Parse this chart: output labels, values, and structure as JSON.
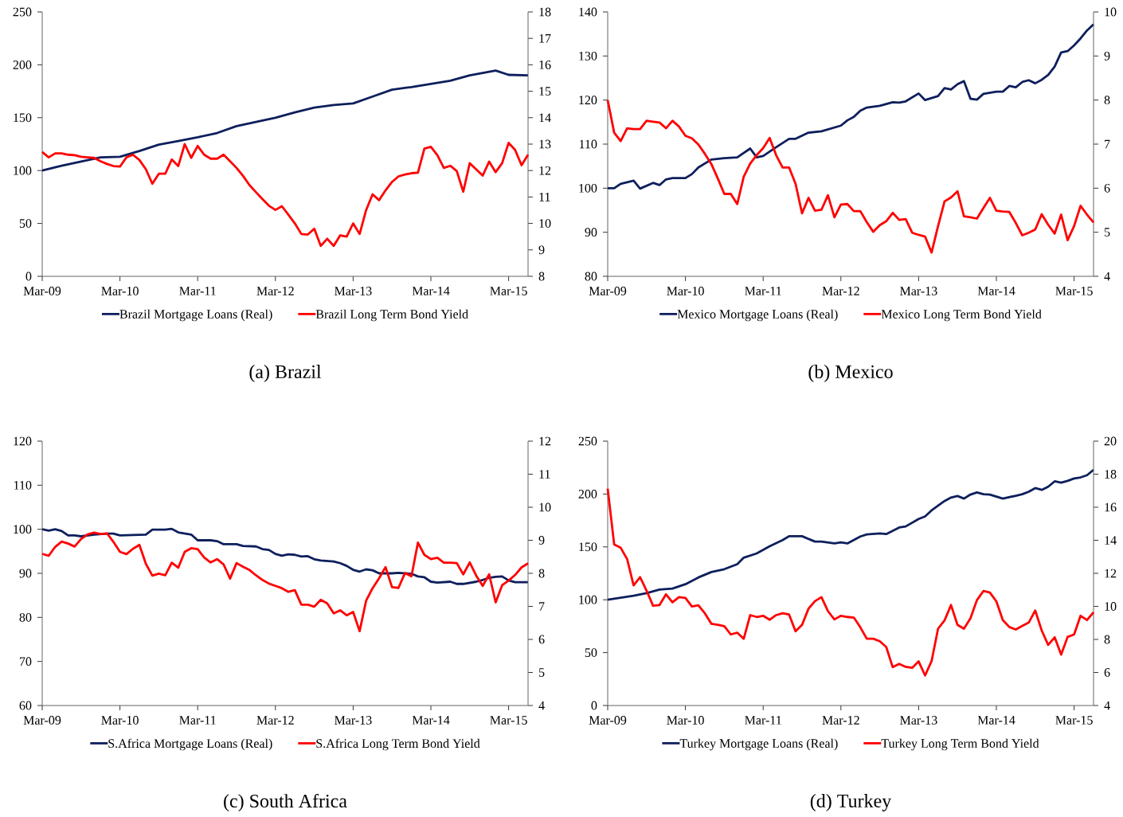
{
  "chart_data": [
    {
      "type": "line",
      "title": "(a) Brazil",
      "legend": "bottom",
      "xlim": [
        "2009-03",
        "2015-06"
      ],
      "ylim": [
        0,
        250
      ],
      "yticks": [
        0,
        50,
        100,
        150,
        200,
        250
      ],
      "y2lim": [
        8,
        18
      ],
      "y2ticks": [
        8,
        9,
        10,
        11,
        12,
        13,
        14,
        15,
        16,
        17,
        18
      ],
      "xticks": [
        {
          "value": "2009-03",
          "label": "Mar-09"
        },
        {
          "value": "2010-03",
          "label": "Mar-10"
        },
        {
          "value": "2011-03",
          "label": "Mar-11"
        },
        {
          "value": "2012-03",
          "label": "Mar-12"
        },
        {
          "value": "2013-03",
          "label": "Mar-13"
        },
        {
          "value": "2014-03",
          "label": "Mar-14"
        },
        {
          "value": "2015-03",
          "label": "Mar-15"
        }
      ],
      "x": [
        "2009-03",
        "2009-04",
        "2009-05",
        "2009-06",
        "2009-07",
        "2009-08",
        "2009-09",
        "2009-10",
        "2009-11",
        "2009-12",
        "2010-01",
        "2010-02",
        "2010-03",
        "2010-04",
        "2010-05",
        "2010-06",
        "2010-07",
        "2010-08",
        "2010-09",
        "2010-10",
        "2010-11",
        "2010-12",
        "2011-01",
        "2011-02",
        "2011-03",
        "2011-04",
        "2011-05",
        "2011-06",
        "2011-07",
        "2011-08",
        "2011-09",
        "2011-10",
        "2011-11",
        "2011-12",
        "2012-01",
        "2012-02",
        "2012-03",
        "2012-04",
        "2012-05",
        "2012-06",
        "2012-07",
        "2012-08",
        "2012-09",
        "2012-10",
        "2012-11",
        "2012-12",
        "2013-01",
        "2013-02",
        "2013-03",
        "2013-04",
        "2013-05",
        "2013-06",
        "2013-07",
        "2013-08",
        "2013-09",
        "2013-10",
        "2013-11",
        "2013-12",
        "2014-01",
        "2014-02",
        "2014-03",
        "2014-04",
        "2014-05",
        "2014-06",
        "2014-07",
        "2014-08",
        "2014-09",
        "2014-10",
        "2014-11",
        "2014-12",
        "2015-01",
        "2015-02",
        "2015-03",
        "2015-04",
        "2015-05",
        "2015-06"
      ],
      "series": [
        {
          "name": "Brazil Mortgage Loans (Real)",
          "color": "#0d1f5c",
          "x": [
            "2009-03",
            "2009-06",
            "2009-09",
            "2009-12",
            "2010-03",
            "2010-06",
            "2010-09",
            "2010-12",
            "2011-03",
            "2011-06",
            "2011-09",
            "2011-12",
            "2012-03",
            "2012-06",
            "2012-09",
            "2012-12",
            "2013-03",
            "2013-06",
            "2013-09",
            "2013-12",
            "2014-03",
            "2014-06",
            "2014-09",
            "2014-12",
            "2015-01",
            "2015-03",
            "2015-06"
          ],
          "values": [
            100,
            104.5,
            108.5,
            112.5,
            113,
            118.5,
            124.5,
            128,
            131.5,
            135.5,
            142,
            146,
            150,
            155,
            159.5,
            162,
            163.5,
            170,
            176.5,
            179,
            182,
            185,
            190,
            193.5,
            194.5,
            190.5,
            190
          ]
        },
        {
          "name": "Brazil Long Term Bond Yield",
          "color": "#ff0000",
          "axis": "y2",
          "values": [
            12.7,
            12.5,
            12.65,
            12.65,
            12.6,
            12.58,
            12.52,
            12.5,
            12.48,
            12.35,
            12.25,
            12.17,
            12.15,
            12.5,
            12.6,
            12.4,
            12.05,
            11.5,
            11.88,
            11.88,
            12.42,
            12.17,
            13.0,
            12.48,
            12.93,
            12.6,
            12.45,
            12.45,
            12.6,
            12.35,
            12.1,
            11.8,
            11.45,
            11.18,
            10.92,
            10.67,
            10.51,
            10.65,
            10.33,
            10.0,
            9.6,
            9.58,
            9.8,
            9.15,
            9.42,
            9.15,
            9.55,
            9.5,
            10.0,
            9.6,
            10.5,
            11.1,
            10.88,
            11.25,
            11.57,
            11.78,
            11.85,
            11.9,
            11.92,
            12.83,
            12.9,
            12.58,
            12.1,
            12.18,
            11.98,
            11.2,
            12.28,
            12.04,
            11.81,
            12.34,
            11.94,
            12.28,
            13.05,
            12.78,
            12.2,
            12.6
          ]
        }
      ]
    },
    {
      "type": "line",
      "title": "(b) Mexico",
      "legend": "bottom",
      "xlim": [
        "2009-03",
        "2015-06"
      ],
      "ylim": [
        80,
        140
      ],
      "yticks": [
        80,
        90,
        100,
        110,
        120,
        130,
        140
      ],
      "y2lim": [
        4,
        10
      ],
      "y2ticks": [
        4,
        5,
        6,
        7,
        8,
        9,
        10
      ],
      "xticks": [
        {
          "value": "2009-03",
          "label": "Mar-09"
        },
        {
          "value": "2010-03",
          "label": "Mar-10"
        },
        {
          "value": "2011-03",
          "label": "Mar-11"
        },
        {
          "value": "2012-03",
          "label": "Mar-12"
        },
        {
          "value": "2013-03",
          "label": "Mar-13"
        },
        {
          "value": "2014-03",
          "label": "Mar-14"
        },
        {
          "value": "2015-03",
          "label": "Mar-15"
        }
      ],
      "x": [
        "2009-03",
        "2009-04",
        "2009-05",
        "2009-06",
        "2009-07",
        "2009-08",
        "2009-09",
        "2009-10",
        "2009-11",
        "2009-12",
        "2010-01",
        "2010-02",
        "2010-03",
        "2010-04",
        "2010-05",
        "2010-06",
        "2010-07",
        "2010-08",
        "2010-09",
        "2010-10",
        "2010-11",
        "2010-12",
        "2011-01",
        "2011-02",
        "2011-03",
        "2011-04",
        "2011-05",
        "2011-06",
        "2011-07",
        "2011-08",
        "2011-09",
        "2011-10",
        "2011-11",
        "2011-12",
        "2012-01",
        "2012-02",
        "2012-03",
        "2012-04",
        "2012-05",
        "2012-06",
        "2012-07",
        "2012-08",
        "2012-09",
        "2012-10",
        "2012-11",
        "2012-12",
        "2013-01",
        "2013-02",
        "2013-03",
        "2013-04",
        "2013-05",
        "2013-06",
        "2013-07",
        "2013-08",
        "2013-09",
        "2013-10",
        "2013-11",
        "2013-12",
        "2014-01",
        "2014-02",
        "2014-03",
        "2014-04",
        "2014-05",
        "2014-06",
        "2014-07",
        "2014-08",
        "2014-09",
        "2014-10",
        "2014-11",
        "2014-12",
        "2015-01",
        "2015-02",
        "2015-03",
        "2015-04",
        "2015-05",
        "2015-06"
      ],
      "series": [
        {
          "name": "Mexico Mortgage Loans (Real)",
          "color": "#0d1f5c",
          "x": [
            "2009-03",
            "2009-04",
            "2009-05",
            "2009-07",
            "2009-08",
            "2009-10",
            "2009-11",
            "2009-12",
            "2010-01",
            "2010-03",
            "2010-04",
            "2010-05",
            "2010-07",
            "2010-09",
            "2010-11",
            "2011-01",
            "2011-02",
            "2011-03",
            "2011-05",
            "2011-07",
            "2011-08",
            "2011-10",
            "2011-12",
            "2012-03",
            "2012-04",
            "2012-05",
            "2012-06",
            "2012-07",
            "2012-09",
            "2012-11",
            "2012-12",
            "2013-01",
            "2013-03",
            "2013-04",
            "2013-06",
            "2013-07",
            "2013-08",
            "2013-09",
            "2013-10",
            "2013-11",
            "2013-12",
            "2014-01",
            "2014-03",
            "2014-04",
            "2014-05",
            "2014-06",
            "2014-07",
            "2014-08",
            "2014-09",
            "2014-10",
            "2014-11",
            "2014-12",
            "2015-01",
            "2015-02",
            "2015-03",
            "2015-04",
            "2015-05",
            "2015-06"
          ],
          "values": [
            100,
            100,
            101,
            101.7,
            99.9,
            101.2,
            100.7,
            102,
            102.3,
            102.3,
            103.2,
            104.7,
            106.5,
            106.8,
            107,
            109,
            107,
            107.3,
            109.3,
            111.2,
            111.2,
            112.6,
            112.9,
            114.2,
            115.4,
            116.2,
            117.6,
            118.3,
            118.7,
            119.5,
            119.4,
            119.7,
            121.5,
            120,
            120.9,
            122.7,
            122.4,
            123.6,
            124.3,
            120.3,
            120.1,
            121.4,
            121.9,
            121.9,
            123.2,
            122.9,
            124.1,
            124.5,
            123.8,
            124.6,
            125.7,
            127.6,
            130.8,
            131.1,
            132.4,
            134,
            135.8,
            137.2
          ]
        },
        {
          "name": "Mexico Long Term Bond Yield",
          "color": "#ff0000",
          "axis": "y2",
          "values": [
            8.0,
            7.26,
            7.07,
            7.36,
            7.34,
            7.34,
            7.53,
            7.51,
            7.49,
            7.36,
            7.53,
            7.4,
            7.19,
            7.13,
            6.99,
            6.78,
            6.55,
            6.22,
            5.87,
            5.87,
            5.64,
            6.26,
            6.56,
            6.75,
            6.91,
            7.14,
            6.75,
            6.47,
            6.47,
            6.1,
            5.43,
            5.78,
            5.49,
            5.51,
            5.84,
            5.34,
            5.63,
            5.64,
            5.48,
            5.48,
            5.23,
            5.01,
            5.16,
            5.25,
            5.44,
            5.28,
            5.3,
            4.99,
            4.94,
            4.9,
            4.54,
            5.14,
            5.7,
            5.79,
            5.93,
            5.36,
            5.34,
            5.31,
            5.55,
            5.78,
            5.49,
            5.47,
            5.46,
            5.21,
            4.93,
            4.99,
            5.06,
            5.41,
            5.17,
            4.97,
            5.4,
            4.82,
            5.14,
            5.6,
            5.4,
            5.22
          ]
        }
      ]
    },
    {
      "type": "line",
      "title": "(c) South Africa",
      "legend": "bottom",
      "xlim": [
        "2009-03",
        "2015-06"
      ],
      "ylim": [
        60,
        120
      ],
      "yticks": [
        60,
        70,
        80,
        90,
        100,
        110,
        120
      ],
      "y2lim": [
        4,
        12
      ],
      "y2ticks": [
        4,
        5,
        6,
        7,
        8,
        9,
        10,
        11,
        12
      ],
      "xticks": [
        {
          "value": "2009-03",
          "label": "Mar-09"
        },
        {
          "value": "2010-03",
          "label": "Mar-10"
        },
        {
          "value": "2011-03",
          "label": "Mar-11"
        },
        {
          "value": "2012-03",
          "label": "Mar-12"
        },
        {
          "value": "2013-03",
          "label": "Mar-13"
        },
        {
          "value": "2014-03",
          "label": "Mar-14"
        },
        {
          "value": "2015-03",
          "label": "Mar-15"
        }
      ],
      "x": [
        "2009-03",
        "2009-04",
        "2009-05",
        "2009-06",
        "2009-07",
        "2009-08",
        "2009-09",
        "2009-10",
        "2009-11",
        "2009-12",
        "2010-01",
        "2010-02",
        "2010-03",
        "2010-04",
        "2010-05",
        "2010-06",
        "2010-07",
        "2010-08",
        "2010-09",
        "2010-10",
        "2010-11",
        "2010-12",
        "2011-01",
        "2011-02",
        "2011-03",
        "2011-04",
        "2011-05",
        "2011-06",
        "2011-07",
        "2011-08",
        "2011-09",
        "2011-10",
        "2011-11",
        "2011-12",
        "2012-01",
        "2012-02",
        "2012-03",
        "2012-04",
        "2012-05",
        "2012-06",
        "2012-07",
        "2012-08",
        "2012-09",
        "2012-10",
        "2012-11",
        "2012-12",
        "2013-01",
        "2013-02",
        "2013-03",
        "2013-04",
        "2013-05",
        "2013-06",
        "2013-07",
        "2013-08",
        "2013-09",
        "2013-10",
        "2013-11",
        "2013-12",
        "2014-01",
        "2014-02",
        "2014-03",
        "2014-04",
        "2014-05",
        "2014-06",
        "2014-07",
        "2014-08",
        "2014-09",
        "2014-10",
        "2014-11",
        "2014-12",
        "2015-01",
        "2015-02",
        "2015-03",
        "2015-04",
        "2015-05",
        "2015-06"
      ],
      "series": [
        {
          "name": "S.Africa Mortgage Loans (Real)",
          "color": "#0d1f5c",
          "x": [
            "2009-03",
            "2009-04",
            "2009-05",
            "2009-06",
            "2009-07",
            "2009-08",
            "2009-09",
            "2009-11",
            "2010-01",
            "2010-02",
            "2010-03",
            "2010-05",
            "2010-07",
            "2010-08",
            "2010-10",
            "2010-11",
            "2010-12",
            "2011-02",
            "2011-03",
            "2011-05",
            "2011-06",
            "2011-07",
            "2011-09",
            "2011-10",
            "2011-12",
            "2012-01",
            "2012-02",
            "2012-03",
            "2012-04",
            "2012-05",
            "2012-06",
            "2012-07",
            "2012-08",
            "2012-09",
            "2012-10",
            "2012-12",
            "2013-01",
            "2013-02",
            "2013-03",
            "2013-04",
            "2013-05",
            "2013-06",
            "2013-07",
            "2013-09",
            "2013-10",
            "2013-12",
            "2014-01",
            "2014-02",
            "2014-03",
            "2014-04",
            "2014-06",
            "2014-07",
            "2014-08",
            "2014-10",
            "2014-11",
            "2014-12",
            "2015-01",
            "2015-02",
            "2015-03",
            "2015-04",
            "2015-06"
          ],
          "values": [
            100,
            99.7,
            100,
            99.6,
            98.6,
            98.6,
            98.4,
            98.8,
            99,
            99,
            98.6,
            98.7,
            98.8,
            99.9,
            99.9,
            100.1,
            99.3,
            98.8,
            97.5,
            97.5,
            97.3,
            96.6,
            96.6,
            96.2,
            96.1,
            95.5,
            95.3,
            94.4,
            94,
            94.3,
            94.2,
            93.8,
            93.9,
            93.2,
            92.9,
            92.7,
            92.3,
            91.7,
            90.8,
            90.4,
            90.9,
            90.7,
            90,
            90,
            90.1,
            89.9,
            89.3,
            89.1,
            88.1,
            87.9,
            88.1,
            87.6,
            87.6,
            88.1,
            88.5,
            89,
            89.2,
            89.3,
            88.4,
            88,
            88
          ]
        },
        {
          "name": "S.Africa Long Term Bond Yield",
          "color": "#ff0000",
          "axis": "y2",
          "values": [
            8.59,
            8.53,
            8.8,
            8.96,
            8.9,
            8.81,
            9.04,
            9.18,
            9.23,
            9.19,
            9.21,
            8.95,
            8.65,
            8.58,
            8.74,
            8.86,
            8.29,
            7.93,
            7.99,
            7.94,
            8.32,
            8.17,
            8.65,
            8.76,
            8.73,
            8.48,
            8.33,
            8.43,
            8.27,
            7.84,
            8.31,
            8.2,
            8.1,
            7.94,
            7.8,
            7.69,
            7.62,
            7.55,
            7.44,
            7.49,
            7.05,
            7.05,
            6.99,
            7.2,
            7.09,
            6.79,
            6.88,
            6.73,
            6.83,
            6.25,
            7.17,
            7.55,
            7.85,
            8.19,
            7.58,
            7.56,
            8.01,
            7.91,
            8.93,
            8.56,
            8.43,
            8.47,
            8.32,
            8.32,
            8.31,
            7.97,
            8.33,
            7.93,
            7.62,
            7.97,
            7.12,
            7.64,
            7.78,
            7.95,
            8.18,
            8.3
          ]
        }
      ]
    },
    {
      "type": "line",
      "title": "(d) Turkey",
      "legend": "bottom",
      "xlim": [
        "2009-03",
        "2015-06"
      ],
      "ylim": [
        0,
        250
      ],
      "yticks": [
        0,
        50,
        100,
        150,
        200,
        250
      ],
      "y2lim": [
        4,
        20
      ],
      "y2ticks": [
        4,
        6,
        8,
        10,
        12,
        14,
        16,
        18,
        20
      ],
      "xticks": [
        {
          "value": "2009-03",
          "label": "Mar-09"
        },
        {
          "value": "2010-03",
          "label": "Mar-10"
        },
        {
          "value": "2011-03",
          "label": "Mar-11"
        },
        {
          "value": "2012-03",
          "label": "Mar-12"
        },
        {
          "value": "2013-03",
          "label": "Mar-13"
        },
        {
          "value": "2014-03",
          "label": "Mar-14"
        },
        {
          "value": "2015-03",
          "label": "Mar-15"
        }
      ],
      "x": [
        "2009-03",
        "2009-04",
        "2009-05",
        "2009-06",
        "2009-07",
        "2009-08",
        "2009-09",
        "2009-10",
        "2009-11",
        "2009-12",
        "2010-01",
        "2010-02",
        "2010-03",
        "2010-04",
        "2010-05",
        "2010-06",
        "2010-07",
        "2010-08",
        "2010-09",
        "2010-10",
        "2010-11",
        "2010-12",
        "2011-01",
        "2011-02",
        "2011-03",
        "2011-04",
        "2011-05",
        "2011-06",
        "2011-07",
        "2011-08",
        "2011-09",
        "2011-10",
        "2011-11",
        "2011-12",
        "2012-01",
        "2012-02",
        "2012-03",
        "2012-04",
        "2012-05",
        "2012-06",
        "2012-07",
        "2012-08",
        "2012-09",
        "2012-10",
        "2012-11",
        "2012-12",
        "2013-01",
        "2013-02",
        "2013-03",
        "2013-04",
        "2013-05",
        "2013-06",
        "2013-07",
        "2013-08",
        "2013-09",
        "2013-10",
        "2013-11",
        "2013-12",
        "2014-01",
        "2014-02",
        "2014-03",
        "2014-04",
        "2014-05",
        "2014-06",
        "2014-07",
        "2014-08",
        "2014-09",
        "2014-10",
        "2014-11",
        "2014-12",
        "2015-01",
        "2015-02",
        "2015-03",
        "2015-04",
        "2015-05",
        "2015-06"
      ],
      "series": [
        {
          "name": "Turkey Mortgage Loans (Real)",
          "color": "#0d1f5c",
          "x": [
            "2009-03",
            "2009-05",
            "2009-07",
            "2009-09",
            "2009-11",
            "2010-01",
            "2010-03",
            "2010-05",
            "2010-07",
            "2010-09",
            "2010-11",
            "2010-12",
            "2011-02",
            "2011-04",
            "2011-06",
            "2011-07",
            "2011-09",
            "2011-11",
            "2011-12",
            "2012-02",
            "2012-03",
            "2012-04",
            "2012-06",
            "2012-07",
            "2012-09",
            "2012-10",
            "2012-12",
            "2013-01",
            "2013-03",
            "2013-04",
            "2013-05",
            "2013-07",
            "2013-08",
            "2013-09",
            "2013-10",
            "2013-11",
            "2013-12",
            "2014-01",
            "2014-02",
            "2014-04",
            "2014-06",
            "2014-07",
            "2014-08",
            "2014-09",
            "2014-10",
            "2014-11",
            "2014-12",
            "2015-01",
            "2015-02",
            "2015-03",
            "2015-04",
            "2015-05",
            "2015-06"
          ],
          "values": [
            100,
            102,
            103.8,
            106.2,
            109.6,
            110.6,
            114.7,
            121.1,
            126.2,
            128.9,
            133.6,
            139.8,
            143.8,
            150.6,
            156.4,
            160.1,
            160.1,
            155,
            155,
            153.3,
            154.3,
            153.3,
            159.8,
            161.8,
            162.8,
            162.1,
            168.3,
            169.3,
            176.4,
            178.8,
            184.5,
            193.4,
            196.7,
            198.1,
            195.7,
            199.5,
            201.5,
            199.8,
            199.5,
            195.7,
            198.4,
            199.8,
            202.2,
            205.6,
            203.9,
            206.9,
            212,
            210.7,
            212.4,
            214.7,
            215.7,
            217.8,
            222.9
          ]
        },
        {
          "name": "Turkey Long Term Bond Yield",
          "color": "#ff0000",
          "axis": "y2",
          "values": [
            17.13,
            13.75,
            13.55,
            12.86,
            11.27,
            11.77,
            10.95,
            10.04,
            10.08,
            10.73,
            10.25,
            10.56,
            10.51,
            9.99,
            10.06,
            9.58,
            8.95,
            8.88,
            8.8,
            8.3,
            8.41,
            8.04,
            9.47,
            9.36,
            9.43,
            9.19,
            9.47,
            9.58,
            9.51,
            8.49,
            8.88,
            9.86,
            10.32,
            10.56,
            9.71,
            9.21,
            9.43,
            9.36,
            9.32,
            8.73,
            8.04,
            8.04,
            7.89,
            7.54,
            6.32,
            6.52,
            6.34,
            6.28,
            6.67,
            5.82,
            6.69,
            8.65,
            9.15,
            10.08,
            8.88,
            8.65,
            9.28,
            10.38,
            10.93,
            10.84,
            10.3,
            9.17,
            8.75,
            8.6,
            8.82,
            9.02,
            9.75,
            8.54,
            7.67,
            8.13,
            7.08,
            8.15,
            8.3,
            9.43,
            9.17,
            9.64
          ]
        }
      ]
    }
  ]
}
